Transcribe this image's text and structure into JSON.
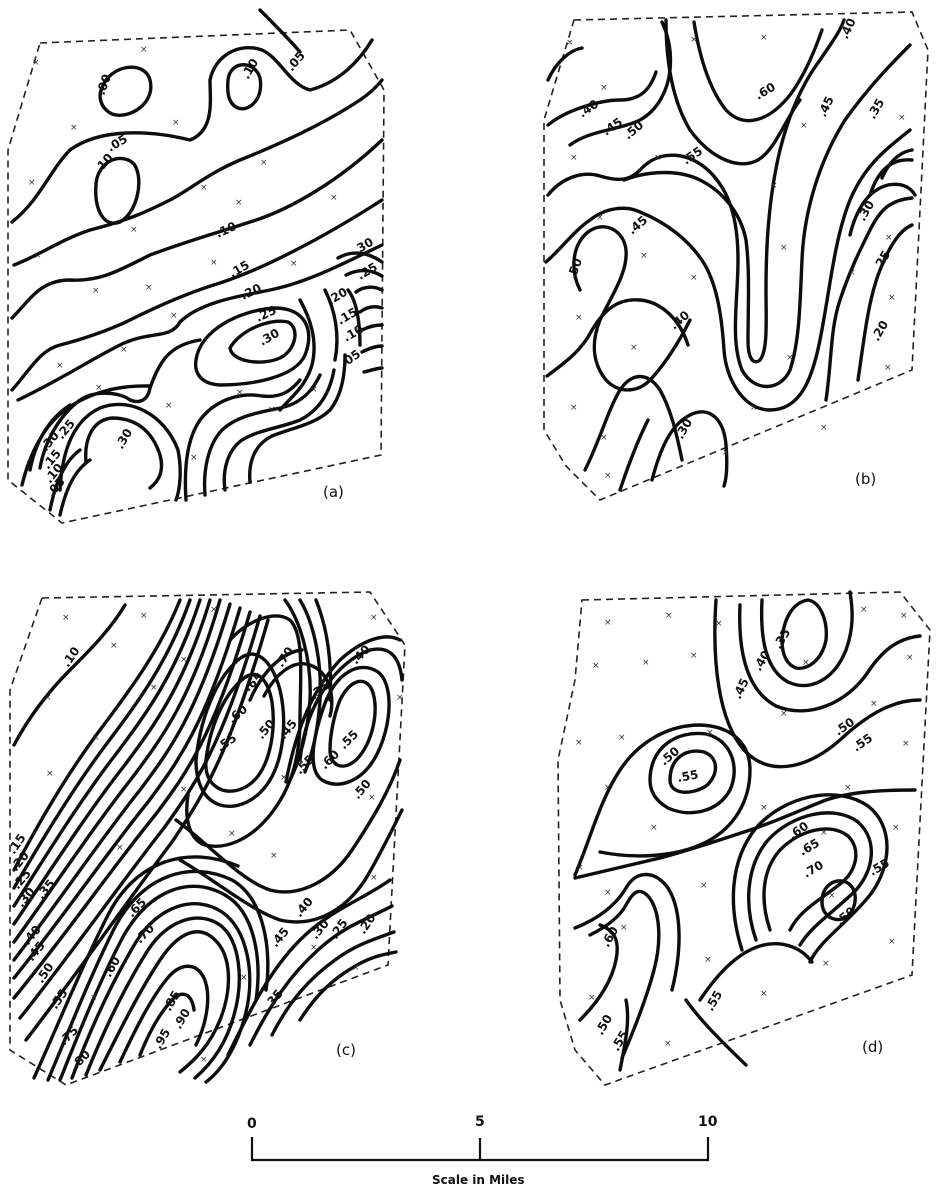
{
  "maps": [
    {
      "caption": "(a)",
      "contour_labels": [
        ".00",
        ".10",
        ".05",
        ".05",
        ".10",
        ".10",
        ".15",
        ".20",
        ".25",
        ".30",
        ".30",
        ".25",
        ".20",
        ".15",
        ".10",
        ".05",
        ".30",
        ".25",
        ".15",
        ".10",
        ".05",
        ".30"
      ]
    },
    {
      "caption": "(b)",
      "contour_labels": [
        ".40",
        ".45",
        ".50",
        ".55",
        ".60",
        ".45",
        ".40",
        ".35",
        ".45",
        ".50",
        ".40",
        ".30",
        ".25",
        ".20",
        ".30"
      ]
    },
    {
      "caption": "(c)",
      "contour_labels": [
        ".10",
        ".15",
        ".20",
        ".25",
        ".30",
        ".35",
        ".40",
        ".45",
        ".50",
        ".55",
        ".60",
        ".65",
        ".70",
        ".75",
        ".80",
        ".85",
        ".90",
        ".95",
        ".70",
        ".65",
        ".60",
        ".55",
        ".50",
        ".45",
        ".35",
        ".40",
        ".55",
        ".60",
        ".55",
        ".50",
        ".45",
        ".35",
        ".40",
        ".30",
        ".25",
        ".20"
      ]
    },
    {
      "caption": "(d)",
      "contour_labels": [
        ".35",
        ".40",
        ".45",
        ".50",
        ".50",
        ".55",
        ".55",
        ".60",
        ".65",
        ".70",
        ".55",
        ".50",
        ".60",
        ".50",
        ".55",
        ".55"
      ]
    }
  ],
  "scale_bar": {
    "ticks": [
      "0",
      "5",
      "10"
    ],
    "title": "Scale in Miles"
  }
}
